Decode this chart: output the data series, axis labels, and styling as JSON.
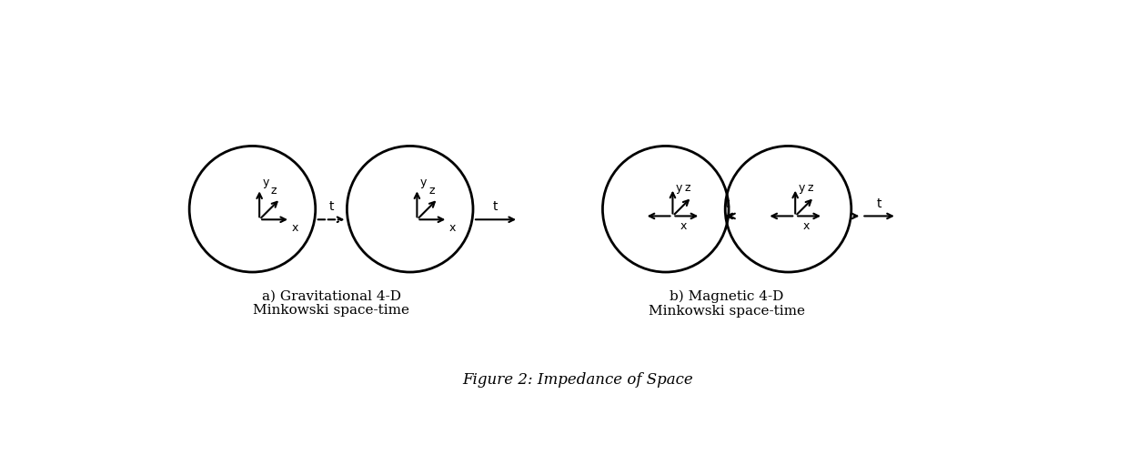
{
  "bg_color": "#ffffff",
  "fig_width": 12.4,
  "fig_height": 5.22,
  "figure_caption": "Figure 2: Impedance of Space",
  "label_a": "a) Gravitational 4-D\nMinkowski space-time",
  "label_b": "b) Magnetic 4-D\nMinkowski space-time",
  "circle_linewidth": 2.0,
  "arrow_color": "#000000",
  "font_size_label": 11,
  "font_size_axis": 9,
  "font_size_t": 10,
  "font_size_caption": 12
}
